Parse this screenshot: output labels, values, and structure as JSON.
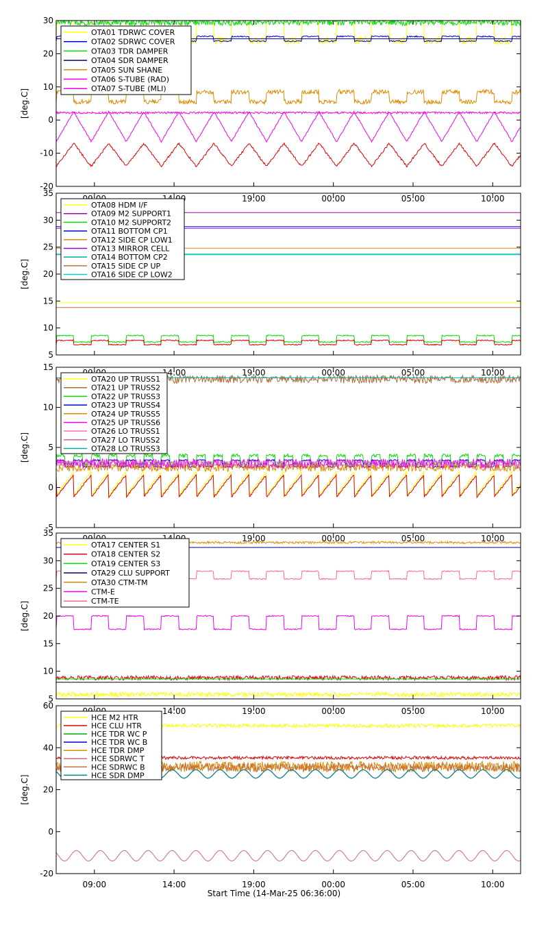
{
  "x_axis_title": "Start Time (14-Mar-25 06:36:00)",
  "chart_data": [
    {
      "type": "line",
      "ylabel": "[deg.C]",
      "ylim": [
        -20,
        30
      ],
      "yticks": [
        -20,
        -10,
        0,
        10,
        20,
        30
      ],
      "xlim_hours": [
        6.6,
        35.75
      ],
      "xtick_hours": [
        9,
        14,
        19,
        24,
        29,
        34
      ],
      "xtick_labels": [
        "09:00",
        "14:00",
        "19:00",
        "00:00",
        "05:00",
        "10:00"
      ],
      "show_xtick_labels": false,
      "grid": false,
      "legend_position": "top-left",
      "series": [
        {
          "name": "OTA01 TDRWC COVER",
          "color": "#ffff00",
          "base": 28,
          "kind": "square",
          "amp": 4,
          "period": 2.2,
          "noise": 1.2
        },
        {
          "name": "OTA02 SDRWC COVER",
          "color": "#0000cd",
          "base": 24.5,
          "kind": "square",
          "amp": 0.7,
          "period": 2.2,
          "noise": 0.2
        },
        {
          "name": "OTA03 TDR DAMPER",
          "color": "#00dd00",
          "base": 29.5,
          "kind": "noise",
          "amp": 0,
          "period": 1,
          "noise": 1.0
        },
        {
          "name": "OTA04 SDR DAMPER",
          "color": "#000080",
          "base": 24.5,
          "kind": "flat",
          "amp": 0,
          "period": 1,
          "noise": 0
        },
        {
          "name": "OTA05 SUN SHANE",
          "color": "#e08a00",
          "base": 7,
          "kind": "square",
          "amp": 1.5,
          "period": 2.2,
          "noise": 0.7
        },
        {
          "name": "OTA06 S-TUBE (RAD)",
          "color": "#ee00ee",
          "base": -2,
          "kind": "tri",
          "amp": 4.5,
          "period": 2.2,
          "noise": 0.2
        },
        {
          "name": "OTA07 S-TUBE (MLI)",
          "color": "#ee00ee",
          "base": 2.2,
          "kind": "noise",
          "amp": 0,
          "period": 1,
          "noise": 0.3
        },
        {
          "name": "",
          "color": "#dd0000",
          "base": -10.5,
          "kind": "tri",
          "amp": 3.5,
          "period": 2.2,
          "noise": 0.3
        }
      ]
    },
    {
      "type": "line",
      "ylabel": "[deg.C]",
      "ylim": [
        5,
        35
      ],
      "yticks": [
        5,
        10,
        15,
        20,
        25,
        30,
        35
      ],
      "xlim_hours": [
        6.6,
        35.75
      ],
      "xtick_hours": [
        9,
        14,
        19,
        24,
        29,
        34
      ],
      "xtick_labels": [
        "09:00",
        "14:00",
        "19:00",
        "00:00",
        "05:00",
        "10:00"
      ],
      "show_xtick_labels": true,
      "grid": false,
      "legend_position": "top-left",
      "series": [
        {
          "name": "OTA08 HDM I/F",
          "color": "#ffff00",
          "base": 14.7,
          "kind": "flat",
          "amp": 0,
          "period": 1,
          "noise": 0
        },
        {
          "name": "OTA09 M2 SUPPORT1",
          "color": "#aa00aa",
          "base": 31.4,
          "kind": "flat",
          "amp": 0,
          "period": 1,
          "noise": 0
        },
        {
          "name": "OTA10 M2 SUPPORT2",
          "color": "#00dd00",
          "base": 8,
          "kind": "square",
          "amp": 0.6,
          "period": 2.2,
          "noise": 0.1
        },
        {
          "name": "OTA11 BOTTOM CP1",
          "color": "#0000cd",
          "base": 28.8,
          "kind": "flat",
          "amp": 0,
          "period": 1,
          "noise": 0
        },
        {
          "name": "OTA12 SIDE CP LOW1",
          "color": "#e08a00",
          "base": 24.8,
          "kind": "flat",
          "amp": 0,
          "period": 1,
          "noise": 0
        },
        {
          "name": "OTA13 MIRROR CELL",
          "color": "#9900cc",
          "base": 28.5,
          "kind": "flat",
          "amp": 0,
          "period": 1,
          "noise": 0
        },
        {
          "name": "OTA14 BOTTOM CP2",
          "color": "#00aaaa",
          "base": 23.7,
          "kind": "flat",
          "amp": 0,
          "period": 1,
          "noise": 0
        },
        {
          "name": "OTA15 SIDE CP UP",
          "color": "#c0703a",
          "base": 13.8,
          "kind": "flat",
          "amp": 0,
          "period": 1,
          "noise": 0
        },
        {
          "name": "OTA16 SIDE CP LOW2",
          "color": "#00cccc",
          "base": 23.6,
          "kind": "flat",
          "amp": 0,
          "period": 1,
          "noise": 0
        },
        {
          "name": "",
          "color": "#dd0000",
          "base": 7.3,
          "kind": "square",
          "amp": 0.4,
          "period": 2.2,
          "noise": 0.1
        }
      ]
    },
    {
      "type": "line",
      "ylabel": "[deg.C]",
      "ylim": [
        -5,
        15
      ],
      "yticks": [
        -5,
        0,
        5,
        10,
        15
      ],
      "xlim_hours": [
        6.6,
        35.75
      ],
      "xtick_hours": [
        9,
        14,
        19,
        24,
        29,
        34
      ],
      "xtick_labels": [
        "09:00",
        "14:00",
        "19:00",
        "00:00",
        "05:00",
        "10:00"
      ],
      "show_xtick_labels": true,
      "grid": false,
      "legend_position": "top-left",
      "series": [
        {
          "name": "OTA20 UP TRUSS1",
          "color": "#ffff00",
          "base": 0.5,
          "kind": "saw",
          "amp": 1.5,
          "period": 1.1,
          "noise": 0.1
        },
        {
          "name": "OTA21 UP TRUSS2",
          "color": "#b06a3a",
          "base": 13.5,
          "kind": "noise",
          "amp": 0,
          "period": 1,
          "noise": 0.5
        },
        {
          "name": "OTA22 UP TRUSS3",
          "color": "#00dd00",
          "base": 3.5,
          "kind": "square",
          "amp": 0.5,
          "period": 1.1,
          "noise": 0.2
        },
        {
          "name": "OTA23 UP TRUSS4",
          "color": "#0000cd",
          "base": 3,
          "kind": "square",
          "amp": 0.4,
          "period": 1.1,
          "noise": 0.1
        },
        {
          "name": "OTA24 UP TRUSS5",
          "color": "#e08a00",
          "base": 2.5,
          "kind": "noise",
          "amp": 0,
          "period": 1,
          "noise": 0.5
        },
        {
          "name": "OTA25 UP TRUSS6",
          "color": "#ee00ee",
          "base": 3,
          "kind": "noise",
          "amp": 0,
          "period": 1,
          "noise": 0.6
        },
        {
          "name": "OTA26 LO TRUSS1",
          "color": "#ff66cc",
          "base": 3.2,
          "kind": "flat",
          "amp": 0,
          "period": 1,
          "noise": 0
        },
        {
          "name": "OTA27 LO TRUSS2",
          "color": "#cc6688",
          "base": 2.8,
          "kind": "flat",
          "amp": 0,
          "period": 1,
          "noise": 0
        },
        {
          "name": "OTA28 LO TRUSS3",
          "color": "#00aaaa",
          "base": 13.7,
          "kind": "flat",
          "amp": 0,
          "period": 1,
          "noise": 0
        },
        {
          "name": "",
          "color": "#dd0000",
          "base": 0.2,
          "kind": "saw",
          "amp": 1.4,
          "period": 1.1,
          "noise": 0.1
        }
      ]
    },
    {
      "type": "line",
      "ylabel": "[deg.C]",
      "ylim": [
        5,
        35
      ],
      "yticks": [
        5,
        10,
        15,
        20,
        25,
        30,
        35
      ],
      "xlim_hours": [
        6.6,
        35.75
      ],
      "xtick_hours": [
        9,
        14,
        19,
        24,
        29,
        34
      ],
      "xtick_labels": [
        "09:00",
        "14:00",
        "19:00",
        "00:00",
        "05:00",
        "10:00"
      ],
      "show_xtick_labels": true,
      "grid": false,
      "legend_position": "top-left",
      "series": [
        {
          "name": "OTA17 CENTER S1",
          "color": "#ffff00",
          "base": 5.8,
          "kind": "noise",
          "amp": 0,
          "period": 1,
          "noise": 0.4
        },
        {
          "name": "OTA18 CENTER S2",
          "color": "#dd0000",
          "base": 8.8,
          "kind": "noise",
          "amp": 0,
          "period": 1,
          "noise": 0.4
        },
        {
          "name": "OTA19 CENTER S3",
          "color": "#00dd00",
          "base": 8.6,
          "kind": "flat",
          "amp": 0,
          "period": 1,
          "noise": 0
        },
        {
          "name": "OTA29 CLU SUPPORT",
          "color": "#000080",
          "base": 32.4,
          "kind": "flat",
          "amp": 0,
          "period": 1,
          "noise": 0
        },
        {
          "name": "OTA30 CTM-TM",
          "color": "#e08a00",
          "base": 33.3,
          "kind": "noise",
          "amp": 0,
          "period": 1,
          "noise": 0.2
        },
        {
          "name": "CTM-E",
          "color": "#ee00ee",
          "base": 18.8,
          "kind": "square",
          "amp": 1.2,
          "period": 2.2,
          "noise": 0.1
        },
        {
          "name": "CTM-TE",
          "color": "#ff6699",
          "base": 27.4,
          "kind": "square",
          "amp": 0.7,
          "period": 2.2,
          "noise": 0.1
        },
        {
          "name": "",
          "color": "#000000",
          "base": 8.0,
          "kind": "flat",
          "amp": 0,
          "period": 1,
          "noise": 0
        }
      ]
    },
    {
      "type": "line",
      "ylabel": "[deg.C]",
      "ylim": [
        -20,
        60
      ],
      "yticks": [
        -20,
        0,
        20,
        40,
        60
      ],
      "xlim_hours": [
        6.6,
        35.75
      ],
      "xtick_hours": [
        9,
        14,
        19,
        24,
        29,
        34
      ],
      "xtick_labels": [
        "09:00",
        "14:00",
        "19:00",
        "00:00",
        "05:00",
        "10:00"
      ],
      "show_xtick_labels": true,
      "grid": false,
      "legend_position": "top-left",
      "series": [
        {
          "name": "HCE M2 HTR",
          "color": "#ffff00",
          "base": 50.5,
          "kind": "noise",
          "amp": 0,
          "period": 1,
          "noise": 0.9
        },
        {
          "name": "HCE CLU HTR",
          "color": "#dd0000",
          "base": 35.2,
          "kind": "noise",
          "amp": 0,
          "period": 1,
          "noise": 0.7
        },
        {
          "name": "HCE TDR WC P",
          "color": "#00aa00",
          "base": 27.5,
          "kind": "sine",
          "amp": 2,
          "period": 1.5,
          "noise": 0
        },
        {
          "name": "HCE TDR WC B",
          "color": "#0000cd",
          "base": 27.5,
          "kind": "sine",
          "amp": 2,
          "period": 1.5,
          "noise": 0
        },
        {
          "name": "HCE TDR DMP",
          "color": "#e08a00",
          "base": 31,
          "kind": "noise",
          "amp": 0,
          "period": 1,
          "noise": 2.5
        },
        {
          "name": "HCE SDRWC T",
          "color": "#cc6688",
          "base": -11.5,
          "kind": "sine",
          "amp": 2.5,
          "period": 1.5,
          "noise": 0
        },
        {
          "name": "HCE SDRWC B",
          "color": "#c0703a",
          "base": 30.5,
          "kind": "noise",
          "amp": 0,
          "period": 1,
          "noise": 2.0
        },
        {
          "name": "HCE SDR DMP",
          "color": "#008888",
          "base": 27.5,
          "kind": "sine",
          "amp": 2,
          "period": 1.5,
          "noise": 0
        }
      ]
    }
  ]
}
